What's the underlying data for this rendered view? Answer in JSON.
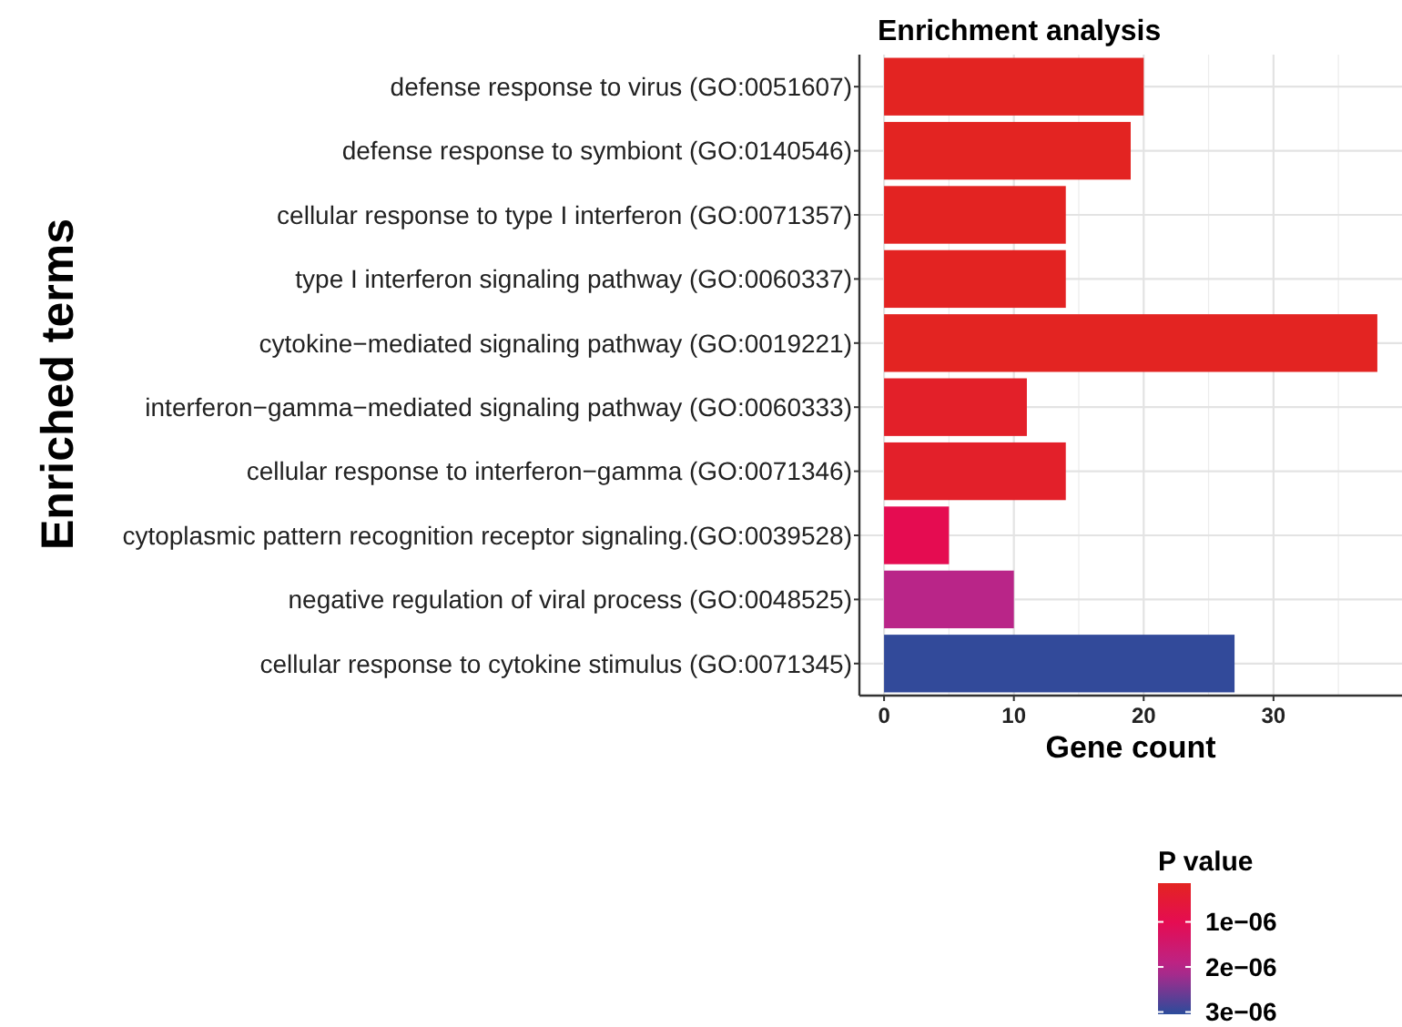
{
  "chart_data": {
    "type": "bar",
    "orientation": "horizontal",
    "title": "Enrichment analysis",
    "xlabel": "Gene count",
    "ylabel": "Enriched terms",
    "categories": [
      "defense response to virus (GO:0051607)",
      "defense response to symbiont (GO:0140546)",
      "cellular response to type I interferon (GO:0071357)",
      "type I interferon signaling pathway (GO:0060337)",
      "cytokine−mediated signaling pathway (GO:0019221)",
      "interferon−gamma−mediated signaling pathway (GO:0060333)",
      "cellular response to interferon−gamma (GO:0071346)",
      "cytoplasmic pattern recognition receptor signaling.(GO:0039528)",
      "negative regulation of viral process (GO:0048525)",
      "cellular response to cytokine stimulus (GO:0071345)"
    ],
    "values": [
      20,
      19,
      14,
      14,
      38,
      11,
      14,
      5,
      10,
      27
    ],
    "cvalues": [
      1.5e-07,
      1.5e-07,
      1.6e-07,
      1.6e-07,
      1.5e-07,
      2.8e-07,
      3e-07,
      1e-06,
      2e-06,
      3e-06
    ],
    "clabel": "P value",
    "clim": [
      1.4e-07,
      3.05e-06
    ],
    "cticks": [
      {
        "value": 1e-06,
        "label": "1e−06"
      },
      {
        "value": 2e-06,
        "label": "2e−06"
      },
      {
        "value": 3e-06,
        "label": "3e−06"
      }
    ],
    "xlim": [
      -1.9,
      39.9
    ],
    "xticks": [
      0,
      10,
      20,
      30
    ],
    "grid": true
  }
}
